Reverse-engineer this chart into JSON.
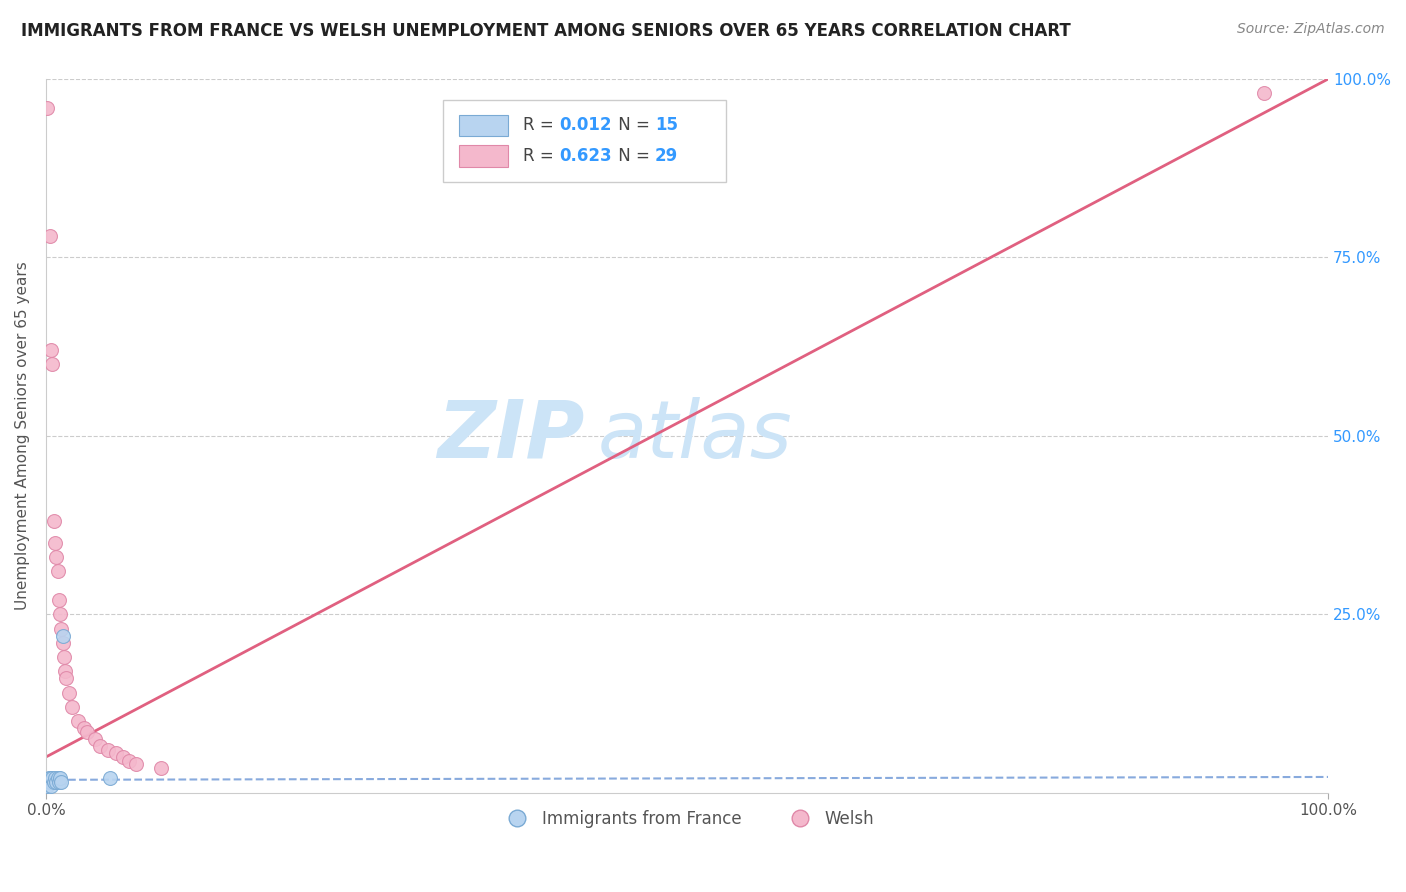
{
  "title": "IMMIGRANTS FROM FRANCE VS WELSH UNEMPLOYMENT AMONG SENIORS OVER 65 YEARS CORRELATION CHART",
  "source": "Source: ZipAtlas.com",
  "ylabel": "Unemployment Among Seniors over 65 years",
  "french_scatter_x": [
    0.001,
    0.002,
    0.003,
    0.003,
    0.004,
    0.005,
    0.006,
    0.007,
    0.008,
    0.009,
    0.01,
    0.011,
    0.012,
    0.013,
    0.05
  ],
  "french_scatter_y": [
    0.01,
    0.02,
    0.015,
    0.02,
    0.01,
    0.02,
    0.015,
    0.02,
    0.015,
    0.02,
    0.015,
    0.02,
    0.015,
    0.22,
    0.02
  ],
  "welsh_scatter_x": [
    0.001,
    0.003,
    0.004,
    0.005,
    0.006,
    0.007,
    0.008,
    0.009,
    0.01,
    0.011,
    0.012,
    0.013,
    0.014,
    0.015,
    0.016,
    0.018,
    0.02,
    0.025,
    0.03,
    0.032,
    0.038,
    0.042,
    0.048,
    0.055,
    0.06,
    0.065,
    0.07,
    0.09,
    0.95
  ],
  "welsh_scatter_y": [
    0.96,
    0.78,
    0.62,
    0.6,
    0.38,
    0.35,
    0.33,
    0.31,
    0.27,
    0.25,
    0.23,
    0.21,
    0.19,
    0.17,
    0.16,
    0.14,
    0.12,
    0.1,
    0.09,
    0.085,
    0.075,
    0.065,
    0.06,
    0.055,
    0.05,
    0.045,
    0.04,
    0.035,
    0.98
  ],
  "french_line_x": [
    0.0,
    1.0
  ],
  "french_line_y": [
    0.018,
    0.022
  ],
  "welsh_line_x": [
    0.0,
    1.0
  ],
  "welsh_line_y": [
    0.05,
    1.0
  ],
  "scatter_size": 100,
  "french_color": "#b8d4f0",
  "welsh_color": "#f4b8cc",
  "french_edge_color": "#7aaad4",
  "welsh_edge_color": "#e088a8",
  "line_french_color": "#88aadd",
  "line_welsh_color": "#e06080",
  "watermark_zip": "ZIP",
  "watermark_atlas": "atlas",
  "watermark_color": "#cce4f7",
  "background_color": "#ffffff",
  "grid_color": "#cccccc",
  "legend_bottom": [
    "Immigrants from France",
    "Welsh"
  ],
  "legend_bottom_colors": [
    "#b8d4f0",
    "#f4b8cc"
  ],
  "legend_bottom_edge_colors": [
    "#7aaad4",
    "#e088a8"
  ],
  "ytick_right_labels": [
    "100.0%",
    "75.0%",
    "50.0%",
    "25.0%",
    ""
  ],
  "ytick_vals": [
    1.0,
    0.75,
    0.5,
    0.25,
    0.0
  ],
  "xtick_labels": [
    "0.0%",
    "100.0%"
  ],
  "xtick_vals": [
    0.0,
    1.0
  ]
}
